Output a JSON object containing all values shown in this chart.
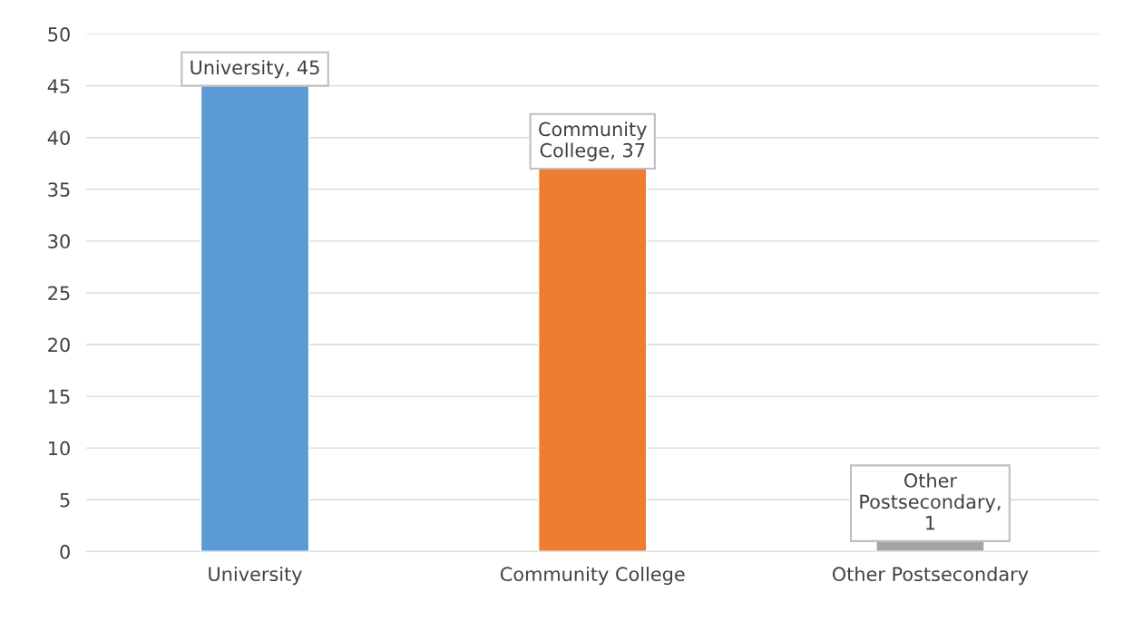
{
  "chart_data": {
    "type": "bar",
    "categories": [
      "University",
      "Community College",
      "Other Postsecondary"
    ],
    "values": [
      45,
      37,
      1
    ],
    "colors": [
      "#5b9bd5",
      "#ed7d31",
      "#a5a5a5"
    ],
    "value_labels": [
      "University, 45",
      "Community\nCollege, 37",
      "Other\nPostsecondary,\n1"
    ],
    "ylim": [
      0,
      50
    ],
    "yticks": [
      0,
      5,
      10,
      15,
      20,
      25,
      30,
      35,
      40,
      45,
      50
    ],
    "grid": "y"
  }
}
